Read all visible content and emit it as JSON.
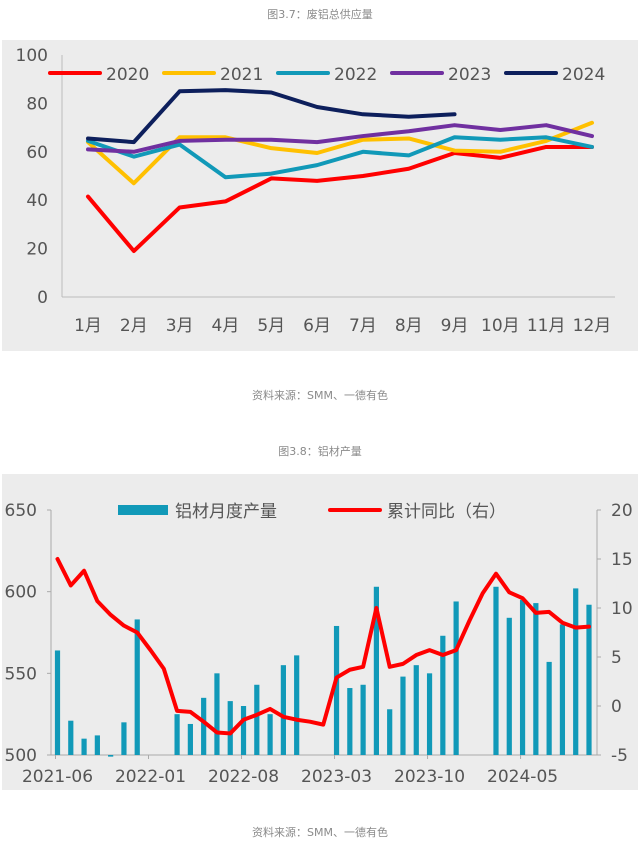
{
  "captions": {
    "fig1": "图3.7：废铝总供应量",
    "src1": "资料来源：SMM、一德有色",
    "fig2": "图3.8：铝材产量",
    "src2": "资料来源：SMM、一德有色"
  },
  "chart_data": [
    {
      "type": "line",
      "ylim": [
        0,
        100
      ],
      "yticks": [
        "0",
        "20",
        "40",
        "60",
        "80",
        "100"
      ],
      "categories": [
        "1月",
        "2月",
        "3月",
        "4月",
        "5月",
        "6月",
        "7月",
        "8月",
        "9月",
        "10月",
        "11月",
        "12月"
      ],
      "legend_placement": "top",
      "background": "#ececec",
      "series": [
        {
          "name": "2020",
          "color": "#ff0000",
          "values": [
            41.5,
            19,
            37,
            39.5,
            49,
            48,
            50,
            53,
            59.5,
            57.5,
            62,
            62
          ]
        },
        {
          "name": "2021",
          "color": "#ffc000",
          "values": [
            64,
            47,
            66,
            66,
            61.5,
            59.5,
            65,
            65.5,
            60.5,
            60,
            64.5,
            72
          ]
        },
        {
          "name": "2022",
          "color": "#1199b8",
          "values": [
            64.5,
            58,
            63,
            49.5,
            51,
            54.5,
            60,
            58.5,
            66,
            65,
            66,
            62
          ]
        },
        {
          "name": "2023",
          "color": "#7030a0",
          "values": [
            61,
            60,
            64.5,
            65,
            65,
            64,
            66.5,
            68.5,
            71,
            69,
            71,
            66.5
          ]
        },
        {
          "name": "2024",
          "color": "#0d1f5c",
          "values": [
            65.5,
            64,
            85,
            85.5,
            84.5,
            78.5,
            75.5,
            74.5,
            75.5,
            null,
            null,
            null
          ]
        }
      ]
    },
    {
      "type": "bar+line",
      "ylim_left": [
        500,
        650
      ],
      "ylim_right": [
        -5,
        20
      ],
      "yticks_left": [
        "500",
        "550",
        "600",
        "650"
      ],
      "yticks_right": [
        "-5",
        "0",
        "5",
        "10",
        "15",
        "20"
      ],
      "xtick_labels": [
        "2021-06",
        "2022-01",
        "2022-08",
        "2023-03",
        "2023-10",
        "2024-05"
      ],
      "x": [
        "2021-06",
        "2021-07",
        "2021-08",
        "2021-09",
        "2021-10",
        "2021-11",
        "2021-12",
        "2022-01",
        "2022-02",
        "2022-03",
        "2022-04",
        "2022-05",
        "2022-06",
        "2022-07",
        "2022-08",
        "2022-09",
        "2022-10",
        "2022-11",
        "2022-12",
        "2023-01",
        "2023-02",
        "2023-03",
        "2023-04",
        "2023-05",
        "2023-06",
        "2023-07",
        "2023-08",
        "2023-09",
        "2023-10",
        "2023-11",
        "2023-12",
        "2024-01",
        "2024-02",
        "2024-03",
        "2024-04",
        "2024-05",
        "2024-06",
        "2024-07",
        "2024-08",
        "2024-09",
        "2024-10"
      ],
      "legend_placement": "top",
      "background": "#ececec",
      "series": [
        {
          "name": "铝材月度产量",
          "kind": "bar",
          "axis": "left",
          "color": "#1199b8",
          "values": [
            564,
            521,
            510,
            512,
            499,
            520,
            583,
            null,
            null,
            525,
            519,
            535,
            550,
            533,
            530,
            543,
            525,
            555,
            561,
            null,
            null,
            579,
            541,
            543,
            603,
            528,
            548,
            555,
            550,
            573,
            594,
            null,
            null,
            603,
            584,
            595,
            593,
            557,
            580,
            602,
            592
          ]
        },
        {
          "name": "累计同比（右）",
          "kind": "line",
          "axis": "right",
          "color": "#ff0000",
          "values": [
            15,
            12.3,
            13.8,
            10.7,
            9.3,
            8.2,
            7.5,
            5.7,
            3.8,
            -0.5,
            -0.6,
            -1.6,
            -2.7,
            -2.8,
            -1.4,
            -0.9,
            -0.3,
            -1.1,
            -1.4,
            -1.6,
            -1.9,
            2.9,
            3.7,
            4.0,
            10.0,
            4.0,
            4.3,
            5.2,
            5.7,
            5.2,
            5.7,
            8.7,
            11.5,
            13.5,
            11.6,
            11.0,
            9.5,
            9.6,
            8.5,
            8.0,
            8.1
          ]
        }
      ]
    }
  ]
}
